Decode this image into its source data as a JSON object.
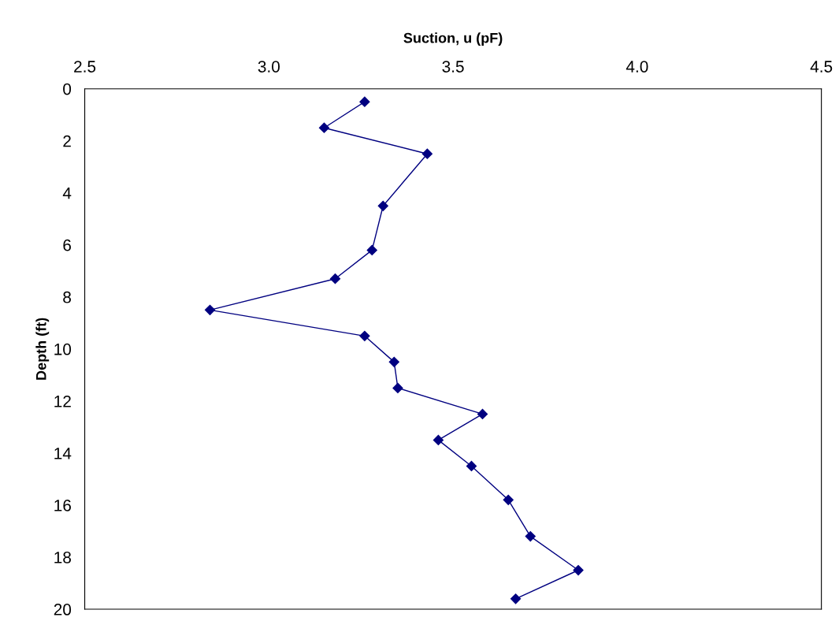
{
  "chart_data": {
    "type": "line",
    "xlabel": "Suction, u (pF)",
    "ylabel": "Depth (ft)",
    "series": [
      {
        "color": "#000080",
        "x": [
          3.26,
          3.15,
          3.43,
          3.31,
          3.28,
          3.18,
          2.84,
          3.26,
          3.34,
          3.35,
          3.58,
          3.46,
          3.55,
          3.65,
          3.71,
          3.84,
          3.67
        ],
        "values": [
          0.5,
          1.5,
          2.5,
          4.5,
          6.2,
          7.3,
          8.5,
          9.5,
          10.5,
          11.5,
          12.5,
          13.5,
          14.5,
          15.8,
          17.2,
          18.5,
          19.6
        ]
      }
    ],
    "xlim": [
      2.5,
      4.5
    ],
    "xticks": [
      {
        "value": 2.5,
        "label": "2.5"
      },
      {
        "value": 3.0,
        "label": "3.0"
      },
      {
        "value": 3.5,
        "label": "3.5"
      },
      {
        "value": 4.0,
        "label": "4.0"
      },
      {
        "value": 4.5,
        "label": "4.5"
      }
    ],
    "ylim": [
      20,
      0
    ],
    "yticks": [
      0,
      2,
      4,
      6,
      8,
      10,
      12,
      14,
      16,
      18,
      20
    ],
    "marker": "diamond",
    "grid": false
  }
}
